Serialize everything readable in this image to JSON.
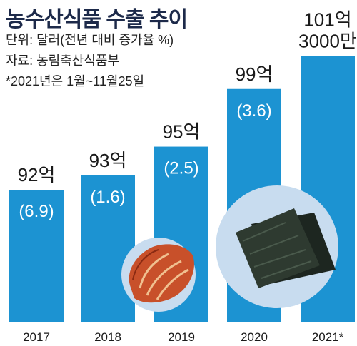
{
  "header": {
    "title": "농수산식품 수출 추이",
    "unit_note": "단위: 달러(전년 대비 증가율 %)",
    "source_note": "자료: 농림축산식품부",
    "period_note": "*2021년은 1월~11월25일"
  },
  "chart_data": {
    "type": "bar",
    "title": "농수산식품 수출 추이",
    "categories": [
      "2017",
      "2018",
      "2019",
      "2020",
      "2021*"
    ],
    "values": [
      92,
      93,
      95,
      99,
      101.3
    ],
    "value_labels": [
      "92억",
      "93억",
      "95억",
      "99억",
      "101억 3000만"
    ],
    "growth_pct": [
      6.9,
      1.6,
      2.5,
      3.6,
      null
    ],
    "growth_labels": [
      "(6.9)",
      "(1.6)",
      "(2.5)",
      "(3.6)",
      ""
    ],
    "unit": "달러",
    "ylim": [
      0,
      101.3
    ],
    "grid": false,
    "legend": "none",
    "colors": {
      "bar": "#1c93d2",
      "bubble": "#c8dcef"
    }
  }
}
